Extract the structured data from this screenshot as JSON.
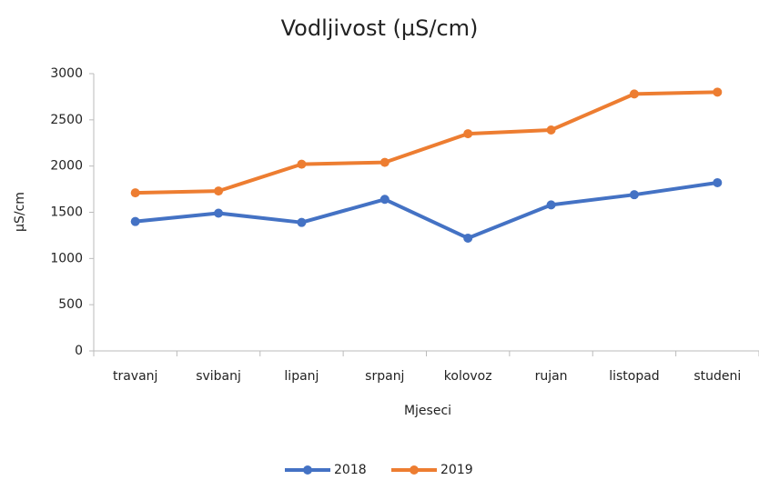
{
  "chart_data": {
    "type": "line",
    "title": "Vodljivost (µS/cm)",
    "x_label": "Mjeseci",
    "y_label": "µS/cm",
    "categories": [
      "travanj",
      "svibanj",
      "lipanj",
      "srpanj",
      "kolovoz",
      "rujan",
      "listopad",
      "studeni"
    ],
    "series": [
      {
        "name": "2018",
        "color": "#4472c4",
        "values": [
          1400,
          1490,
          1390,
          1640,
          1220,
          1580,
          1690,
          1820
        ]
      },
      {
        "name": "2019",
        "color": "#ed7d31",
        "values": [
          1710,
          1730,
          2020,
          2040,
          2350,
          2390,
          2780,
          2800
        ]
      }
    ],
    "ylim": [
      0,
      3000
    ],
    "yticks": [
      0,
      500,
      1000,
      1500,
      2000,
      2500,
      3000
    ],
    "grid": false,
    "legend": "bottom"
  }
}
